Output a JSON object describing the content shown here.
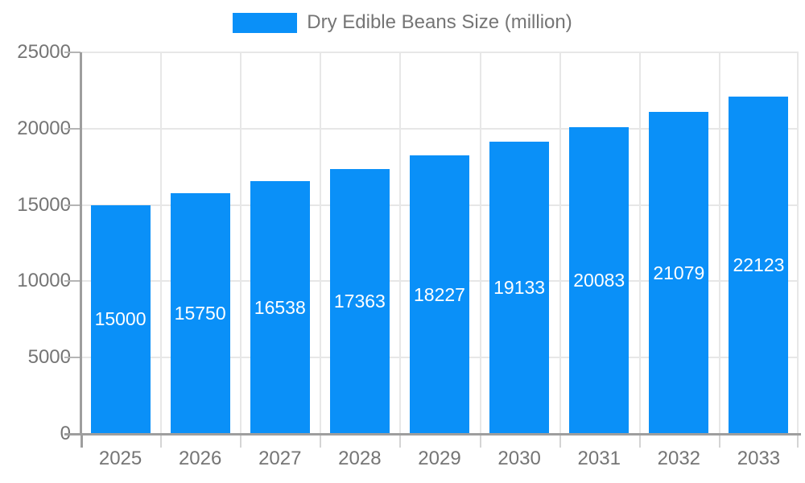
{
  "legend": {
    "label": "Dry Edible Beans Size (million)"
  },
  "colors": {
    "bar": "#0a90f8",
    "bar_label": "#ffffff",
    "axis": "#9e9e9e",
    "gridline": "#e7e7e7",
    "tick": "#b5b5b5",
    "text": "#757575"
  },
  "chart_data": {
    "type": "bar",
    "title": "Dry Edible Beans Size (million)",
    "categories": [
      "2025",
      "2026",
      "2027",
      "2028",
      "2029",
      "2030",
      "2031",
      "2032",
      "2033"
    ],
    "values": [
      15000,
      15750,
      16538,
      17363,
      18227,
      19133,
      20083,
      21079,
      22123
    ],
    "xlabel": "",
    "ylabel": "",
    "ylim": [
      0,
      25000
    ],
    "yticks": [
      0,
      5000,
      10000,
      15000,
      20000,
      25000
    ],
    "grid": true,
    "legend_position": "top",
    "value_labels": "inside-center"
  }
}
